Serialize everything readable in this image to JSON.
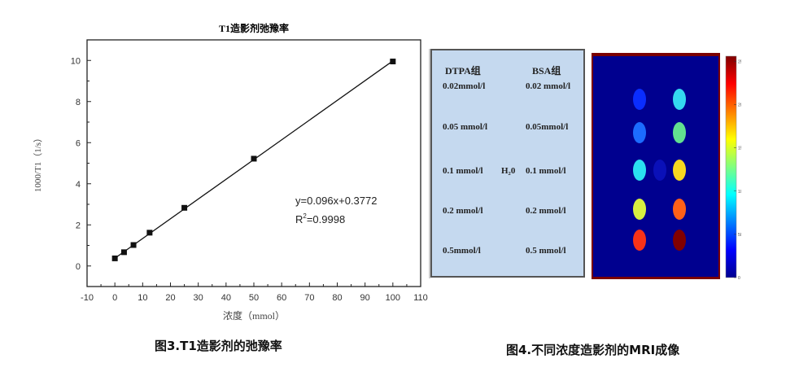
{
  "chart_data": {
    "type": "scatter",
    "title": "T1造影剂弛豫率",
    "xlabel": "浓度（mmol）",
    "ylabel": "1000/T1（1/s）",
    "xlim": [
      -10,
      110
    ],
    "ylim": [
      -1,
      11
    ],
    "xticks": [
      -10,
      0,
      10,
      20,
      30,
      40,
      50,
      60,
      70,
      80,
      90,
      100,
      110
    ],
    "yticks": [
      0,
      2,
      4,
      6,
      8,
      10
    ],
    "points": [
      {
        "x": 0,
        "y": 0.37
      },
      {
        "x": 3.3,
        "y": 0.67
      },
      {
        "x": 6.7,
        "y": 1.02
      },
      {
        "x": 12.5,
        "y": 1.62
      },
      {
        "x": 25,
        "y": 2.83
      },
      {
        "x": 50,
        "y": 5.22
      },
      {
        "x": 100,
        "y": 9.95
      }
    ],
    "fit": {
      "slope": 0.096,
      "intercept": 0.3772
    },
    "equation": "y=0.096x+0.3772",
    "r2_label": "R",
    "r2_sup": "2",
    "r2_value": "=0.9998",
    "grid": false,
    "marker_color": "#111111"
  },
  "caption_left": "图3.T1造影剂的弛豫率",
  "caption_right": "图4.不同浓度造影剂的MRI成像",
  "legend_panel": {
    "header_left": "DTPA组",
    "header_right": "BSA组",
    "left": [
      "0.02mmol/l",
      "0.05 mmol/l",
      "0.1 mmol/l",
      "0.2 mmol/l",
      "0.5mmol/l"
    ],
    "right": [
      "0.02 mmol/l",
      "0.05mmol/l",
      "0.1 mmol/l",
      "0.2 mmol/l",
      "0.5 mmol/l"
    ],
    "middle": "H₂0",
    "background": "#c5d9ef"
  },
  "mri": {
    "background": "#00008f",
    "colormap": "jet",
    "colorbar_ticks": [
      0,
      50,
      100,
      150,
      200,
      250
    ],
    "left_column_colors": [
      "#0a2dff",
      "#1c6cff",
      "#2ae0f0",
      "#d8f040",
      "#f83218"
    ],
    "right_column_colors": [
      "#34d8f0",
      "#62e090",
      "#f8d820",
      "#ff6018",
      "#800000"
    ],
    "center_color": "#0a10b8"
  }
}
